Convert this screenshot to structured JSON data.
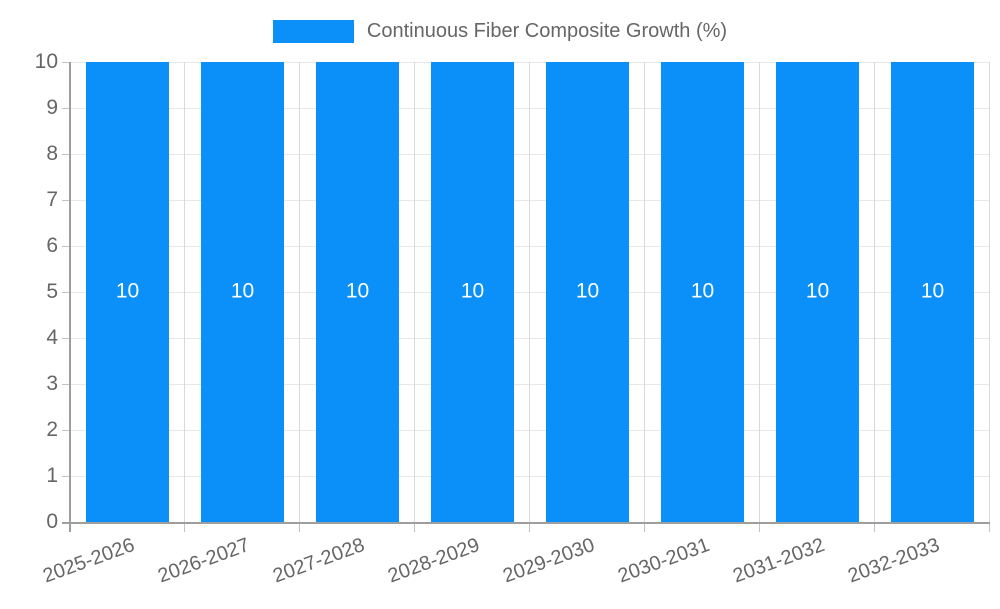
{
  "chart_data": {
    "type": "bar",
    "title": "Continuous Fiber Composite Growth (%)",
    "legend": {
      "position": "top",
      "label": "Continuous Fiber Composite Growth (%)"
    },
    "categories": [
      "2025-2026",
      "2026-2027",
      "2027-2028",
      "2028-2029",
      "2029-2030",
      "2030-2031",
      "2031-2032",
      "2032-2033"
    ],
    "values": [
      10,
      10,
      10,
      10,
      10,
      10,
      10,
      10
    ],
    "xlabel": "",
    "ylabel": "",
    "ylim": [
      0,
      10
    ],
    "yticks": [
      0,
      1,
      2,
      3,
      4,
      5,
      6,
      7,
      8,
      9,
      10
    ],
    "grid": true,
    "x_label_rotation_deg": -20,
    "colors": {
      "bar": "#0a90f8",
      "bar_value_label": "#ffffff",
      "axis": "#9e9e9e",
      "grid_horizontal": "#e8e8e8",
      "grid_vertical": "#d9d9d9",
      "tick_mark": "#c2c2c2",
      "label_text": "#666666",
      "background": "#ffffff"
    }
  }
}
